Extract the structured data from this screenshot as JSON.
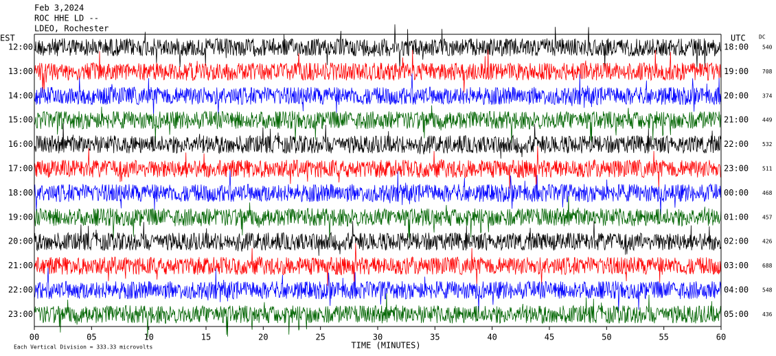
{
  "chart_data": {
    "type": "helicorder",
    "title_lines": [
      "Feb 3,2024",
      "ROC HHE LD --",
      "LDEO, Rochester"
    ],
    "left_label": "EST",
    "right_label": "UTC",
    "dc_label": "DC",
    "x_label": "TIME (MINUTES)",
    "footer": "Each Vertical Division =  333.33 microvolts",
    "xlim": [
      0,
      60
    ],
    "xticks": [
      {
        "value": 0,
        "label": "00"
      },
      {
        "value": 5,
        "label": "05"
      },
      10,
      15,
      20,
      25,
      30,
      35,
      40,
      45,
      50,
      55,
      60
    ],
    "rows": [
      {
        "est": "12:00",
        "utc": "18:00",
        "dc": 540,
        "color": "#000000"
      },
      {
        "est": "13:00",
        "utc": "19:00",
        "dc": 708,
        "color": "#ff0000"
      },
      {
        "est": "14:00",
        "utc": "20:00",
        "dc": 374,
        "color": "#0000ff"
      },
      {
        "est": "15:00",
        "utc": "21:00",
        "dc": 449,
        "color": "#006400"
      },
      {
        "est": "16:00",
        "utc": "22:00",
        "dc": 532,
        "color": "#000000"
      },
      {
        "est": "17:00",
        "utc": "23:00",
        "dc": 511,
        "color": "#ff0000"
      },
      {
        "est": "18:00",
        "utc": "00:00",
        "dc": 468,
        "color": "#0000ff"
      },
      {
        "est": "19:00",
        "utc": "01:00",
        "dc": 457,
        "color": "#006400"
      },
      {
        "est": "20:00",
        "utc": "02:00",
        "dc": 426,
        "color": "#000000"
      },
      {
        "est": "21:00",
        "utc": "03:00",
        "dc": 688,
        "color": "#ff0000"
      },
      {
        "est": "22:00",
        "utc": "04:00",
        "dc": 548,
        "color": "#0000ff"
      },
      {
        "est": "23:00",
        "utc": "05:00",
        "dc": 436,
        "color": "#006400"
      }
    ]
  }
}
